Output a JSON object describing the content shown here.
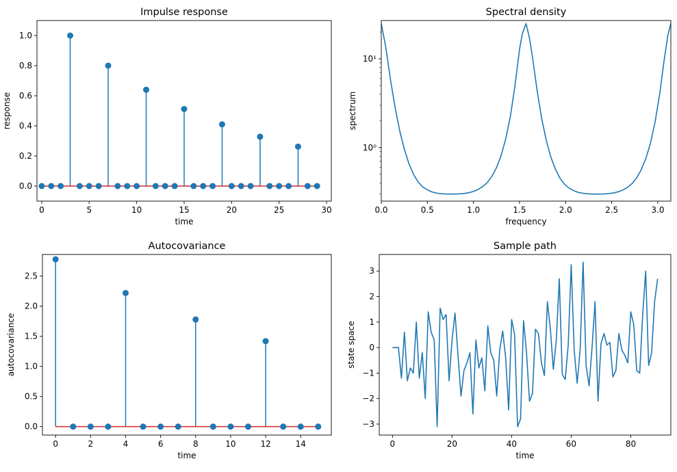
{
  "colors": {
    "primary": "#1f77b4",
    "baseline": "#d62728",
    "axis": "#000000"
  },
  "chart_data": [
    {
      "id": "impulse",
      "type": "stem",
      "title": "Impulse response",
      "xlabel": "time",
      "ylabel": "response",
      "xlim": [
        -0.5,
        30.5
      ],
      "ylim": [
        -0.1,
        1.1
      ],
      "xticks": [
        0,
        5,
        10,
        15,
        20,
        25,
        30
      ],
      "xtick_labels": [
        "0",
        "5",
        "10",
        "15",
        "20",
        "25",
        "30"
      ],
      "yticks": [
        0.0,
        0.2,
        0.4,
        0.6,
        0.8,
        1.0
      ],
      "ytick_labels": [
        "0.0",
        "0.2",
        "0.4",
        "0.6",
        "0.8",
        "1.0"
      ],
      "baseline": 0,
      "x": [
        0,
        1,
        2,
        3,
        4,
        5,
        6,
        7,
        8,
        9,
        10,
        11,
        12,
        13,
        14,
        15,
        16,
        17,
        18,
        19,
        20,
        21,
        22,
        23,
        24,
        25,
        26,
        27,
        28,
        29
      ],
      "y": [
        0,
        0,
        0,
        1.0,
        0,
        0,
        0,
        0.8,
        0,
        0,
        0,
        0.64,
        0,
        0,
        0,
        0.512,
        0,
        0,
        0,
        0.41,
        0,
        0,
        0,
        0.328,
        0,
        0,
        0,
        0.262,
        0,
        0
      ]
    },
    {
      "id": "spectral",
      "type": "line",
      "title": "Spectral density",
      "xlabel": "frequency",
      "ylabel": "spectrum",
      "yscale": "log",
      "xlim": [
        0,
        3.1416
      ],
      "ylim": [
        0.25,
        27
      ],
      "xticks": [
        0.0,
        0.5,
        1.0,
        1.5,
        2.0,
        2.5,
        3.0
      ],
      "xtick_labels": [
        "0.0",
        "0.5",
        "1.0",
        "1.5",
        "2.0",
        "2.5",
        "3.0"
      ],
      "yticks": [
        1,
        10
      ],
      "ytick_labels": [
        "10⁰",
        "10¹"
      ],
      "x": [
        0.0,
        0.05,
        0.1,
        0.15,
        0.2,
        0.25,
        0.3,
        0.35,
        0.4,
        0.45,
        0.5,
        0.55,
        0.6,
        0.65,
        0.7,
        0.75,
        0.7854,
        0.85,
        0.9,
        0.95,
        1.0,
        1.05,
        1.1,
        1.15,
        1.2,
        1.25,
        1.3,
        1.35,
        1.4,
        1.45,
        1.5,
        1.53,
        1.5708,
        1.61,
        1.64,
        1.69,
        1.74,
        1.79,
        1.84,
        1.89,
        1.94,
        1.99,
        2.04,
        2.09,
        2.14,
        2.19,
        2.24,
        2.29,
        2.3562,
        2.42,
        2.47,
        2.52,
        2.57,
        2.62,
        2.67,
        2.72,
        2.77,
        2.82,
        2.87,
        2.92,
        2.97,
        3.02,
        3.07,
        3.11,
        3.1416
      ],
      "y": [
        25.0,
        13.29,
        5.81,
        2.82,
        1.55,
        0.96,
        0.66,
        0.5,
        0.41,
        0.36,
        0.335,
        0.317,
        0.308,
        0.303,
        0.301,
        0.3,
        0.3,
        0.302,
        0.305,
        0.311,
        0.321,
        0.338,
        0.364,
        0.405,
        0.475,
        0.595,
        0.816,
        1.25,
        2.23,
        4.93,
        12.82,
        19.13,
        25.0,
        16.71,
        10.54,
        4.44,
        2.13,
        1.21,
        0.78,
        0.57,
        0.45,
        0.385,
        0.349,
        0.327,
        0.313,
        0.306,
        0.302,
        0.3,
        0.3,
        0.301,
        0.304,
        0.309,
        0.318,
        0.333,
        0.356,
        0.394,
        0.456,
        0.563,
        0.751,
        1.12,
        1.93,
        3.98,
        9.85,
        18.6,
        25.0
      ]
    },
    {
      "id": "autocov",
      "type": "stem",
      "title": "Autocovariance",
      "xlabel": "time",
      "ylabel": "autocovariance",
      "xlim": [
        -0.75,
        15.75
      ],
      "ylim": [
        -0.14,
        2.86
      ],
      "xticks": [
        0,
        2,
        4,
        6,
        8,
        10,
        12,
        14
      ],
      "xtick_labels": [
        "0",
        "2",
        "4",
        "6",
        "8",
        "10",
        "12",
        "14"
      ],
      "yticks": [
        0.0,
        0.5,
        1.0,
        1.5,
        2.0,
        2.5
      ],
      "ytick_labels": [
        "0.0",
        "0.5",
        "1.0",
        "1.5",
        "2.0",
        "2.5"
      ],
      "baseline": 0,
      "x": [
        0,
        1,
        2,
        3,
        4,
        5,
        6,
        7,
        8,
        9,
        10,
        11,
        12,
        13,
        14,
        15
      ],
      "y": [
        2.78,
        0,
        0,
        0,
        2.22,
        0,
        0,
        0,
        1.78,
        0,
        0,
        0,
        1.42,
        0,
        0,
        0
      ]
    },
    {
      "id": "sample",
      "type": "line",
      "title": "Sample path",
      "xlabel": "time",
      "ylabel": "state space",
      "xlim": [
        -4.45,
        93.45
      ],
      "ylim": [
        -3.43,
        3.65
      ],
      "xticks": [
        0,
        20,
        40,
        60,
        80
      ],
      "xtick_labels": [
        "0",
        "20",
        "40",
        "60",
        "80"
      ],
      "yticks": [
        -3,
        -2,
        -1,
        0,
        1,
        2,
        3
      ],
      "ytick_labels": [
        "−3",
        "−2",
        "−1",
        "0",
        "1",
        "2",
        "3"
      ],
      "y": [
        0,
        0,
        0,
        -1.2,
        0.6,
        -1.3,
        -0.8,
        -1.0,
        1.0,
        -1.2,
        -0.2,
        -2.0,
        1.4,
        0.6,
        0.3,
        -3.1,
        1.55,
        1.1,
        1.3,
        -1.3,
        0.3,
        1.35,
        -0.3,
        -1.9,
        -0.9,
        -0.6,
        -0.2,
        -2.6,
        0.3,
        -0.8,
        -0.4,
        -1.7,
        0.85,
        -0.2,
        -0.5,
        -1.9,
        -0.1,
        0.65,
        -0.4,
        -2.45,
        1.1,
        0.5,
        -3.1,
        -2.8,
        1.05,
        -0.2,
        -2.1,
        -1.8,
        0.72,
        0.55,
        -0.6,
        -1.1,
        1.8,
        0.75,
        -0.85,
        0.3,
        2.7,
        -1.05,
        -1.25,
        0.1,
        3.25,
        -0.1,
        -1.4,
        -0.1,
        3.35,
        -0.7,
        -1.5,
        0.0,
        1.8,
        -2.1,
        0.15,
        0.55,
        0.1,
        0.2,
        -1.15,
        -0.9,
        0.55,
        -0.1,
        -0.3,
        -0.6,
        1.4,
        0.9,
        -0.9,
        -1.0,
        1.3,
        3.0,
        -0.7,
        -0.2,
        1.8,
        2.7
      ]
    }
  ]
}
